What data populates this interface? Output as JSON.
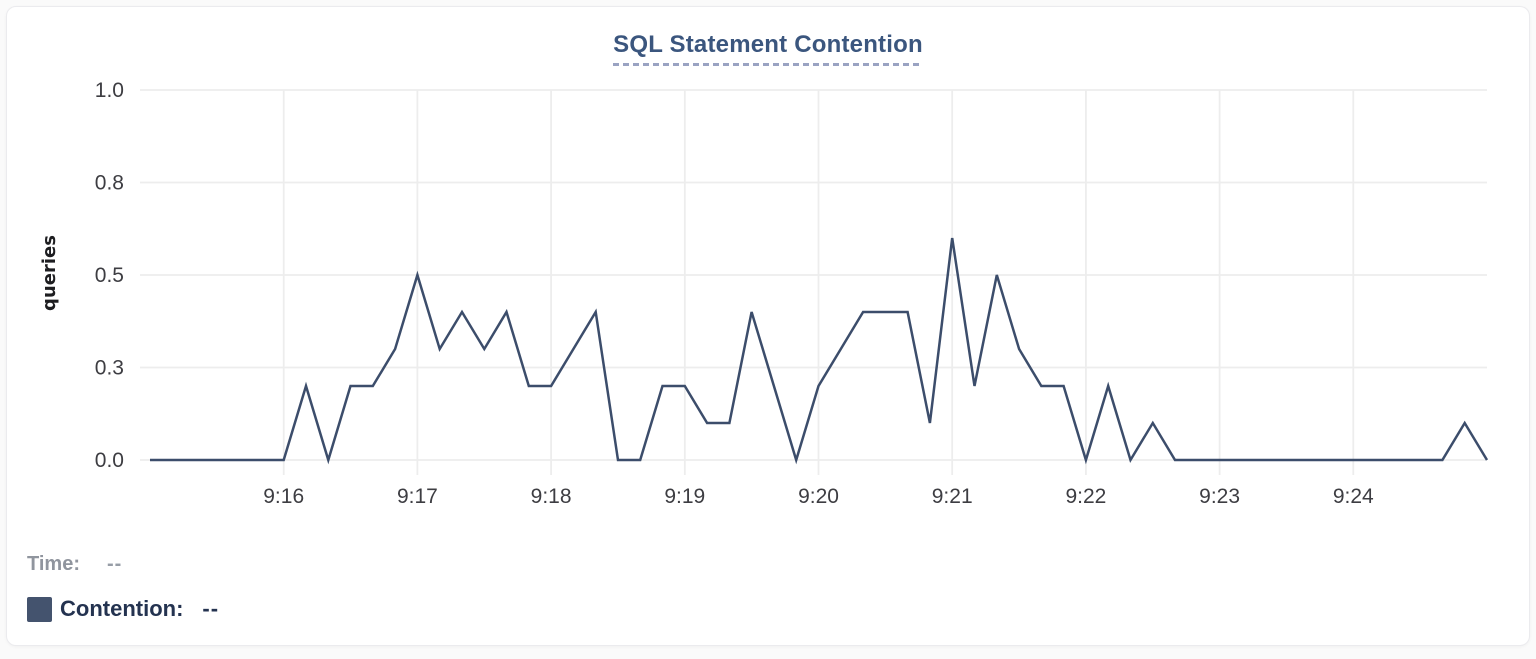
{
  "page": {
    "title": "SQL Statement Contention"
  },
  "chart_data": {
    "type": "line",
    "title": "SQL Statement Contention",
    "xlabel": "",
    "ylabel": "queries",
    "ylim": [
      0,
      1
    ],
    "grid": true,
    "legend_position": "bottom-left",
    "x_start": "9:15:00",
    "x_end": "9:25:00",
    "interval_seconds": 10,
    "duration_seconds": 600,
    "y_ticks": [
      {
        "value": 0.0,
        "label": "0.0"
      },
      {
        "value": 0.25,
        "label": "0.3"
      },
      {
        "value": 0.5,
        "label": "0.5"
      },
      {
        "value": 0.75,
        "label": "0.8"
      },
      {
        "value": 1.0,
        "label": "1.0"
      }
    ],
    "x_ticks": [
      {
        "offset_seconds": 60,
        "label": "9:16"
      },
      {
        "offset_seconds": 120,
        "label": "9:17"
      },
      {
        "offset_seconds": 180,
        "label": "9:18"
      },
      {
        "offset_seconds": 240,
        "label": "9:19"
      },
      {
        "offset_seconds": 300,
        "label": "9:20"
      },
      {
        "offset_seconds": 360,
        "label": "9:21"
      },
      {
        "offset_seconds": 420,
        "label": "9:22"
      },
      {
        "offset_seconds": 480,
        "label": "9:23"
      },
      {
        "offset_seconds": 540,
        "label": "9:24"
      }
    ],
    "series": [
      {
        "name": "Contention",
        "color": "#3c4d6b",
        "values": [
          0,
          0,
          0,
          0,
          0,
          0,
          0,
          0.2,
          0,
          0.2,
          0.2,
          0.3,
          0.5,
          0.3,
          0.4,
          0.3,
          0.4,
          0.2,
          0.2,
          0.3,
          0.4,
          0,
          0,
          0.2,
          0.2,
          0.1,
          0.1,
          0.4,
          0.2,
          0,
          0.2,
          0.3,
          0.4,
          0.4,
          0.4,
          0.1,
          0.6,
          0.2,
          0.5,
          0.3,
          0.2,
          0.2,
          0,
          0.2,
          0,
          0.1,
          0,
          0,
          0,
          0,
          0,
          0,
          0,
          0,
          0,
          0,
          0,
          0,
          0,
          0.1,
          0
        ]
      }
    ]
  },
  "readout": {
    "time_label": "Time:",
    "time_value": "--",
    "series_label": "Contention:",
    "series_value": "--",
    "swatch_color": "#44536e"
  },
  "colors": {
    "title": "#3b567e",
    "title_underline": "#9aa3c2",
    "series_line": "#3c4d6b",
    "grid": "#ededed"
  }
}
